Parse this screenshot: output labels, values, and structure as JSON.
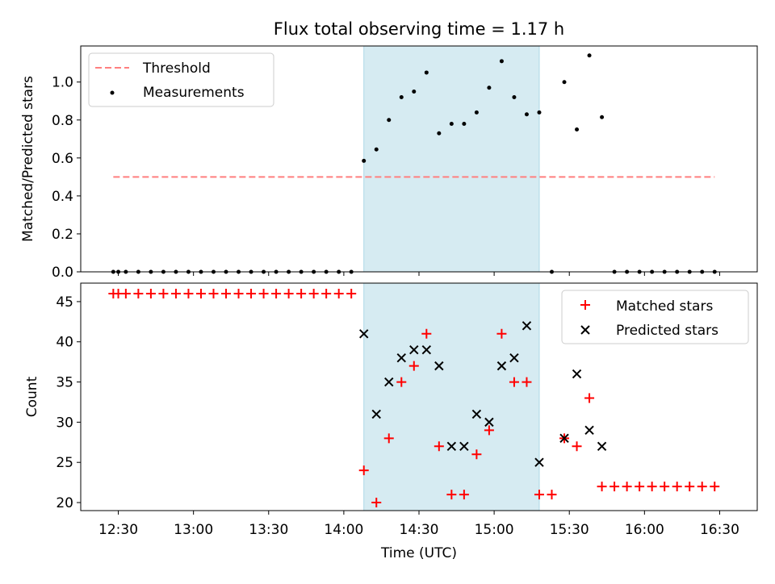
{
  "chart_data": [
    {
      "type": "scatter",
      "title": "Flux total observing time = 1.17 h",
      "xlabel": "",
      "ylabel": "Matched/Predicted stars",
      "ylim": [
        0,
        1.19
      ],
      "yticks": [
        "0.0",
        "0.2",
        "0.4",
        "0.6",
        "0.8",
        "1.0"
      ],
      "xlim": [
        "12:15",
        "16:45"
      ],
      "shaded_span": {
        "start": "14:08",
        "end": "15:18",
        "color": "#add8e6"
      },
      "legend_position": "top-left",
      "threshold": {
        "name": "Threshold",
        "value": 0.5,
        "x_start": "12:28",
        "x_end": "16:28",
        "color": "#ff7f7f"
      },
      "series": [
        {
          "name": "Measurements",
          "color": "#000000",
          "x": [
            "12:28",
            "12:30",
            "12:33",
            "12:38",
            "12:43",
            "12:48",
            "12:53",
            "12:58",
            "13:03",
            "13:08",
            "13:13",
            "13:18",
            "13:23",
            "13:28",
            "13:33",
            "13:38",
            "13:43",
            "13:48",
            "13:53",
            "13:58",
            "14:03",
            "14:08",
            "14:13",
            "14:18",
            "14:23",
            "14:28",
            "14:33",
            "14:38",
            "14:43",
            "14:48",
            "14:53",
            "14:58",
            "15:03",
            "15:08",
            "15:13",
            "15:18",
            "15:23",
            "15:28",
            "15:33",
            "15:38",
            "15:43",
            "15:48",
            "15:53",
            "15:58",
            "16:03",
            "16:08",
            "16:13",
            "16:18",
            "16:23",
            "16:28"
          ],
          "values": [
            0,
            0,
            0,
            0,
            0,
            0,
            0,
            0,
            0,
            0,
            0,
            0,
            0,
            0,
            0,
            0,
            0,
            0,
            0,
            0,
            0,
            0.585,
            0.645,
            0.8,
            0.92,
            0.95,
            1.05,
            0.73,
            0.78,
            0.78,
            0.84,
            0.97,
            1.11,
            0.92,
            0.83,
            0.84,
            0,
            1.0,
            0.75,
            1.14,
            0.815,
            0,
            0,
            0,
            0,
            0,
            0,
            0,
            0,
            0
          ]
        }
      ]
    },
    {
      "type": "scatter",
      "title": "",
      "xlabel": "Time (UTC)",
      "ylabel": "Count",
      "ylim": [
        19,
        47.3
      ],
      "yticks": [
        "20",
        "25",
        "30",
        "35",
        "40",
        "45"
      ],
      "xlim": [
        "12:15",
        "16:45"
      ],
      "xticks": [
        "12:30",
        "13:00",
        "13:30",
        "14:00",
        "14:30",
        "15:00",
        "15:30",
        "16:00",
        "16:30"
      ],
      "shaded_span": {
        "start": "14:08",
        "end": "15:18",
        "color": "#add8e6"
      },
      "legend_position": "top-right",
      "series": [
        {
          "name": "Matched stars",
          "marker": "+",
          "color": "#ff0000",
          "x": [
            "12:28",
            "12:30",
            "12:33",
            "12:38",
            "12:43",
            "12:48",
            "12:53",
            "12:58",
            "13:03",
            "13:08",
            "13:13",
            "13:18",
            "13:23",
            "13:28",
            "13:33",
            "13:38",
            "13:43",
            "13:48",
            "13:53",
            "13:58",
            "14:03",
            "14:08",
            "14:13",
            "14:18",
            "14:23",
            "14:28",
            "14:33",
            "14:38",
            "14:43",
            "14:48",
            "14:53",
            "14:58",
            "15:03",
            "15:08",
            "15:13",
            "15:18",
            "15:23",
            "15:28",
            "15:33",
            "15:38",
            "15:43",
            "15:48",
            "15:53",
            "15:58",
            "16:03",
            "16:08",
            "16:13",
            "16:18",
            "16:23",
            "16:28"
          ],
          "values": [
            46,
            46,
            46,
            46,
            46,
            46,
            46,
            46,
            46,
            46,
            46,
            46,
            46,
            46,
            46,
            46,
            46,
            46,
            46,
            46,
            46,
            24,
            20,
            28,
            35,
            37,
            41,
            27,
            21,
            21,
            26,
            29,
            41,
            35,
            35,
            21,
            21,
            28,
            27,
            33,
            22,
            22,
            22,
            22,
            22,
            22,
            22,
            22,
            22,
            22
          ]
        },
        {
          "name": "Predicted stars",
          "marker": "x",
          "color": "#000000",
          "x": [
            "14:08",
            "14:13",
            "14:18",
            "14:23",
            "14:28",
            "14:33",
            "14:38",
            "14:43",
            "14:48",
            "14:53",
            "14:58",
            "15:03",
            "15:08",
            "15:13",
            "15:18",
            "15:28",
            "15:33",
            "15:38",
            "15:43"
          ],
          "values": [
            41,
            31,
            35,
            38,
            39,
            39,
            37,
            27,
            27,
            31,
            30,
            37,
            38,
            42,
            25,
            28,
            36,
            29,
            27
          ]
        }
      ]
    }
  ]
}
